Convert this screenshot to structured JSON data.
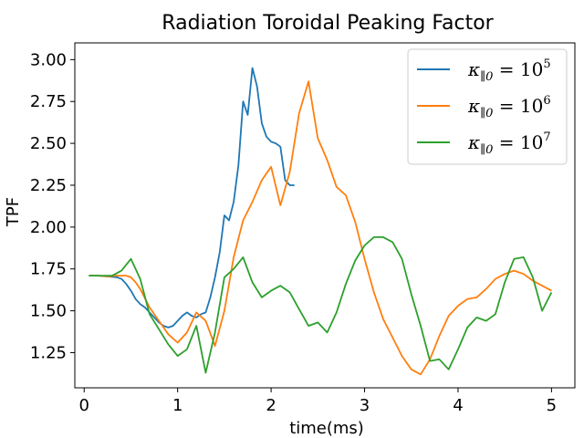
{
  "chart_data": {
    "type": "line",
    "title": "Radiation Toroidal Peaking Factor",
    "xlabel": "time(ms)",
    "ylabel": "TPF",
    "xlim": [
      -0.1,
      5.25
    ],
    "ylim": [
      1.04,
      3.1
    ],
    "xticks": [
      0,
      1,
      2,
      3,
      4,
      5
    ],
    "xtick_labels": [
      "0",
      "1",
      "2",
      "3",
      "4",
      "5"
    ],
    "yticks": [
      1.25,
      1.5,
      1.75,
      2.0,
      2.25,
      2.5,
      2.75,
      3.0
    ],
    "ytick_labels": [
      "1.25",
      "1.50",
      "1.75",
      "2.00",
      "2.25",
      "2.50",
      "2.75",
      "3.00"
    ],
    "grid": false,
    "legend_position": "top-right",
    "series": [
      {
        "name": "κ∥0=10^5",
        "legend_base": "κ",
        "legend_sub": "∥0",
        "legend_eq": " = 10",
        "legend_exp": "5",
        "color": "#1f77b4",
        "x": [
          0.05,
          0.15,
          0.25,
          0.35,
          0.4,
          0.45,
          0.5,
          0.55,
          0.6,
          0.65,
          0.7,
          0.75,
          0.8,
          0.85,
          0.9,
          0.95,
          1.0,
          1.05,
          1.1,
          1.15,
          1.2,
          1.25,
          1.3,
          1.35,
          1.4,
          1.45,
          1.5,
          1.55,
          1.6,
          1.65,
          1.7,
          1.75,
          1.8,
          1.85,
          1.9,
          1.95,
          2.0,
          2.05,
          2.1,
          2.15,
          2.2,
          2.25
        ],
        "y": [
          1.71,
          1.71,
          1.705,
          1.7,
          1.69,
          1.66,
          1.62,
          1.57,
          1.54,
          1.52,
          1.49,
          1.46,
          1.43,
          1.41,
          1.4,
          1.41,
          1.44,
          1.47,
          1.49,
          1.47,
          1.46,
          1.48,
          1.49,
          1.58,
          1.7,
          1.85,
          2.07,
          2.04,
          2.15,
          2.37,
          2.75,
          2.67,
          2.95,
          2.84,
          2.62,
          2.54,
          2.51,
          2.5,
          2.48,
          2.28,
          2.25,
          2.25
        ]
      },
      {
        "name": "κ∥0=10^6",
        "legend_base": "κ",
        "legend_sub": "∥0",
        "legend_eq": " = 10",
        "legend_exp": "6",
        "color": "#ff7f0e",
        "x": [
          0.05,
          0.15,
          0.25,
          0.35,
          0.45,
          0.5,
          0.55,
          0.6,
          0.7,
          0.8,
          0.9,
          1.0,
          1.1,
          1.2,
          1.3,
          1.4,
          1.5,
          1.6,
          1.7,
          1.8,
          1.9,
          2.0,
          2.1,
          2.2,
          2.3,
          2.4,
          2.5,
          2.6,
          2.7,
          2.8,
          2.9,
          3.0,
          3.1,
          3.2,
          3.3,
          3.4,
          3.5,
          3.6,
          3.7,
          3.8,
          3.9,
          4.0,
          4.1,
          4.2,
          4.3,
          4.4,
          4.5,
          4.6,
          4.7,
          4.8,
          4.9,
          5.0
        ],
        "y": [
          1.71,
          1.71,
          1.705,
          1.71,
          1.71,
          1.7,
          1.67,
          1.63,
          1.52,
          1.44,
          1.36,
          1.31,
          1.37,
          1.49,
          1.44,
          1.29,
          1.5,
          1.82,
          2.04,
          2.15,
          2.28,
          2.36,
          2.13,
          2.33,
          2.68,
          2.87,
          2.53,
          2.4,
          2.24,
          2.19,
          2.03,
          1.81,
          1.61,
          1.45,
          1.34,
          1.23,
          1.15,
          1.12,
          1.21,
          1.35,
          1.47,
          1.53,
          1.57,
          1.58,
          1.63,
          1.69,
          1.72,
          1.74,
          1.72,
          1.68,
          1.65,
          1.62
        ]
      },
      {
        "name": "κ∥0=10^7",
        "legend_base": "κ",
        "legend_sub": "∥0",
        "legend_eq": " = 10",
        "legend_exp": "7",
        "color": "#2ca02c",
        "x": [
          0.05,
          0.15,
          0.3,
          0.4,
          0.5,
          0.6,
          0.7,
          0.8,
          0.9,
          1.0,
          1.1,
          1.2,
          1.3,
          1.4,
          1.5,
          1.6,
          1.7,
          1.8,
          1.9,
          2.0,
          2.1,
          2.2,
          2.3,
          2.4,
          2.5,
          2.6,
          2.7,
          2.8,
          2.9,
          3.0,
          3.1,
          3.2,
          3.3,
          3.4,
          3.5,
          3.6,
          3.7,
          3.8,
          3.9,
          4.0,
          4.1,
          4.2,
          4.3,
          4.4,
          4.5,
          4.6,
          4.7,
          4.8,
          4.9,
          5.0
        ],
        "y": [
          1.71,
          1.71,
          1.71,
          1.74,
          1.81,
          1.69,
          1.48,
          1.39,
          1.3,
          1.23,
          1.27,
          1.41,
          1.13,
          1.37,
          1.7,
          1.75,
          1.82,
          1.67,
          1.58,
          1.62,
          1.65,
          1.61,
          1.51,
          1.41,
          1.43,
          1.37,
          1.49,
          1.66,
          1.8,
          1.89,
          1.94,
          1.94,
          1.91,
          1.81,
          1.6,
          1.41,
          1.2,
          1.21,
          1.15,
          1.27,
          1.4,
          1.46,
          1.44,
          1.48,
          1.67,
          1.81,
          1.82,
          1.7,
          1.5,
          1.61
        ]
      }
    ]
  }
}
